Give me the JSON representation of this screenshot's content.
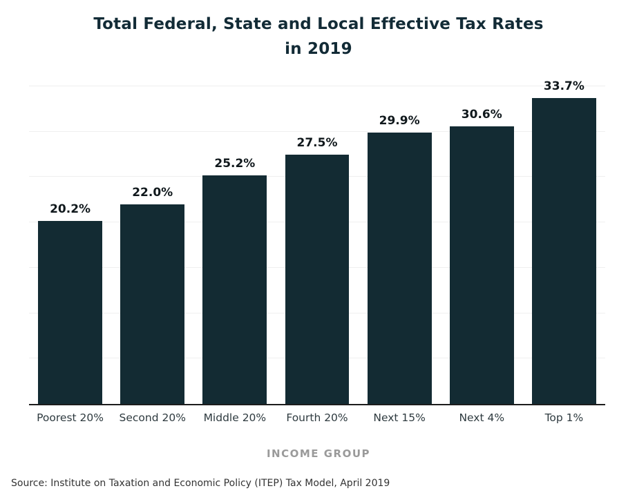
{
  "chart_data": {
    "type": "bar",
    "title": "Total Federal, State and Local Effective Tax Rates in 2019",
    "title_lines": [
      "Total Federal, State and Local Effective Tax Rates",
      "in 2019"
    ],
    "categories": [
      "Poorest 20%",
      "Second 20%",
      "Middle 20%",
      "Fourth 20%",
      "Next 15%",
      "Next 4%",
      "Top 1%"
    ],
    "values": [
      20.2,
      22.0,
      25.2,
      27.5,
      29.9,
      30.6,
      33.7
    ],
    "value_labels": [
      "20.2%",
      "22.0%",
      "25.2%",
      "27.5%",
      "29.9%",
      "30.6%",
      "33.7%"
    ],
    "xlabel": "INCOME GROUP",
    "ylabel": "",
    "ylim": [
      0,
      35
    ],
    "grid_step": 5,
    "grid": "horizontal",
    "legend": "none",
    "bar_color": "#132b33"
  },
  "footer": {
    "source": "Source: Institute on Taxation and Economic Policy (ITEP) Tax Model, April 2019"
  }
}
